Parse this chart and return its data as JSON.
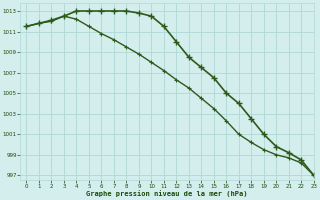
{
  "series1": {
    "x": [
      0,
      1,
      2,
      3,
      4,
      5,
      6,
      7,
      8,
      9,
      10,
      11,
      12,
      13,
      14,
      15,
      16,
      17,
      18,
      19,
      20,
      21,
      22,
      23
    ],
    "y": [
      1011.5,
      1011.8,
      1012.1,
      1012.5,
      1013.0,
      1013.0,
      1013.0,
      1013.0,
      1013.0,
      1012.8,
      1012.5,
      1011.5,
      1010.0,
      1008.5,
      1007.5,
      1006.5,
      1005.0,
      1004.0,
      1002.5,
      1001.0,
      999.8,
      999.2,
      998.5,
      997.0
    ],
    "color": "#2d5a1b",
    "linewidth": 1.2,
    "marker": "+",
    "markersize": 4
  },
  "series2": {
    "x": [
      0,
      1,
      2,
      3,
      4,
      5,
      6,
      7,
      8,
      9,
      10,
      11,
      12,
      13,
      14,
      15,
      16,
      17,
      18,
      19,
      20,
      21,
      22,
      23
    ],
    "y": [
      1011.5,
      1011.8,
      1012.0,
      1012.5,
      1012.2,
      1011.5,
      1010.8,
      1010.2,
      1009.5,
      1008.8,
      1008.0,
      1007.2,
      1006.3,
      1005.5,
      1004.5,
      1003.5,
      1002.3,
      1001.0,
      1000.2,
      999.5,
      999.0,
      998.7,
      998.2,
      997.0
    ],
    "color": "#2d5a1b",
    "linewidth": 1.0,
    "marker": "+",
    "markersize": 3.5
  },
  "background_color": "#d4eeed",
  "grid_color": "#b0d8d4",
  "text_color": "#1a4a0a",
  "xlabel": "Graphe pression niveau de la mer (hPa)",
  "xlim": [
    -0.5,
    23
  ],
  "ylim": [
    996.5,
    1013.8
  ],
  "yticks": [
    997,
    999,
    1001,
    1003,
    1005,
    1007,
    1009,
    1011,
    1013
  ],
  "xticks": [
    0,
    1,
    2,
    3,
    4,
    5,
    6,
    7,
    8,
    9,
    10,
    11,
    12,
    13,
    14,
    15,
    16,
    17,
    18,
    19,
    20,
    21,
    22,
    23
  ]
}
